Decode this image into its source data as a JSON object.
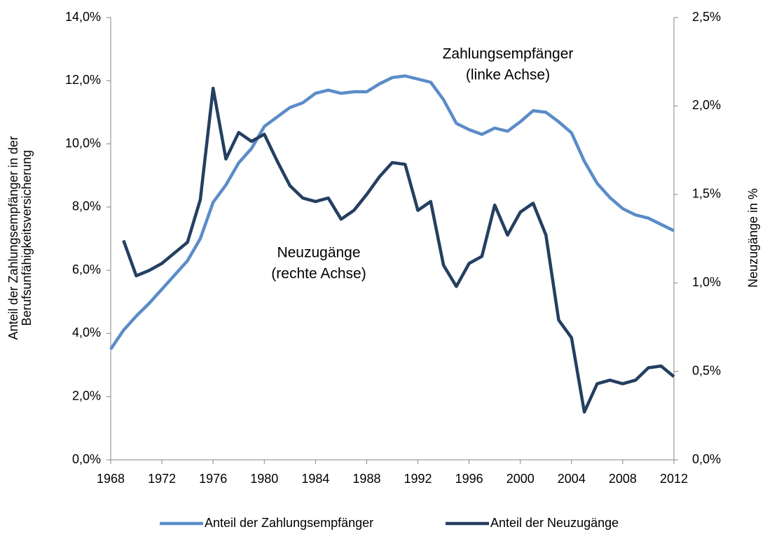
{
  "chart_data": {
    "type": "line",
    "x": [
      1968,
      1969,
      1970,
      1971,
      1972,
      1973,
      1974,
      1975,
      1976,
      1977,
      1978,
      1979,
      1980,
      1981,
      1982,
      1983,
      1984,
      1985,
      1986,
      1987,
      1988,
      1989,
      1990,
      1991,
      1992,
      1993,
      1994,
      1995,
      1996,
      1997,
      1998,
      1999,
      2000,
      2001,
      2002,
      2003,
      2004,
      2005,
      2006,
      2007,
      2008,
      2009,
      2010,
      2011,
      2012
    ],
    "xlim": [
      1968,
      2012
    ],
    "xticks": [
      1968,
      1972,
      1976,
      1980,
      1984,
      1988,
      1992,
      1996,
      2000,
      2004,
      2008,
      2012
    ],
    "ylabel": [
      "Anteil der Zahlungsempfänger in der",
      "Berufsunfähigkeitsversicherung"
    ],
    "y2label": "Neuzugänge in %",
    "ylim": [
      0,
      14
    ],
    "yticks": [
      {
        "value": 0,
        "label": "0,0%"
      },
      {
        "value": 2,
        "label": "2,0%"
      },
      {
        "value": 4,
        "label": "4,0%"
      },
      {
        "value": 6,
        "label": "6,0%"
      },
      {
        "value": 8,
        "label": "8,0%"
      },
      {
        "value": 10,
        "label": "10,0%"
      },
      {
        "value": 12,
        "label": "12,0%"
      },
      {
        "value": 14,
        "label": "14,0%"
      }
    ],
    "y2lim": [
      0,
      2.5
    ],
    "y2ticks": [
      {
        "value": 0,
        "label": "0,0%"
      },
      {
        "value": 0.5,
        "label": "0,5%"
      },
      {
        "value": 1,
        "label": "1,0%"
      },
      {
        "value": 1.5,
        "label": "1,5%"
      },
      {
        "value": 2,
        "label": "2,0%"
      },
      {
        "value": 2.5,
        "label": "2,5%"
      }
    ],
    "annotations": [
      "Zahlungsempfänger",
      "(linke Achse)",
      "Neuzugänge",
      "(rechte Achse)"
    ],
    "legend": "bottom",
    "series": [
      {
        "name": "Anteil der Zahlungsempfänger",
        "color": "#5b8cc8",
        "axis": "y",
        "values": [
          3.5,
          4.1,
          4.55,
          4.95,
          5.4,
          5.85,
          6.3,
          7.0,
          8.15,
          8.7,
          9.4,
          9.85,
          10.55,
          10.85,
          11.15,
          11.3,
          11.6,
          11.7,
          11.6,
          11.65,
          11.65,
          11.9,
          12.1,
          12.15,
          12.05,
          11.95,
          11.4,
          10.65,
          10.45,
          10.3,
          10.5,
          10.4,
          10.7,
          11.05,
          11.0,
          10.7,
          10.35,
          9.45,
          8.75,
          8.3,
          7.95,
          7.75,
          7.65,
          7.45,
          7.25
        ]
      },
      {
        "name": "Anteil der Neuzugänge",
        "color": "#243f60",
        "axis": "y2",
        "values": [
          null,
          1.24,
          1.04,
          1.07,
          1.11,
          1.17,
          1.23,
          1.47,
          2.1,
          1.7,
          1.85,
          1.8,
          1.84,
          1.69,
          1.55,
          1.48,
          1.46,
          1.48,
          1.36,
          1.41,
          1.5,
          1.6,
          1.68,
          1.67,
          1.41,
          1.46,
          1.1,
          0.98,
          1.11,
          1.15,
          1.44,
          1.27,
          1.4,
          1.45,
          1.27,
          0.79,
          0.69,
          0.27,
          0.43,
          0.45,
          0.43,
          0.45,
          0.52,
          0.53,
          0.47
        ]
      }
    ]
  }
}
